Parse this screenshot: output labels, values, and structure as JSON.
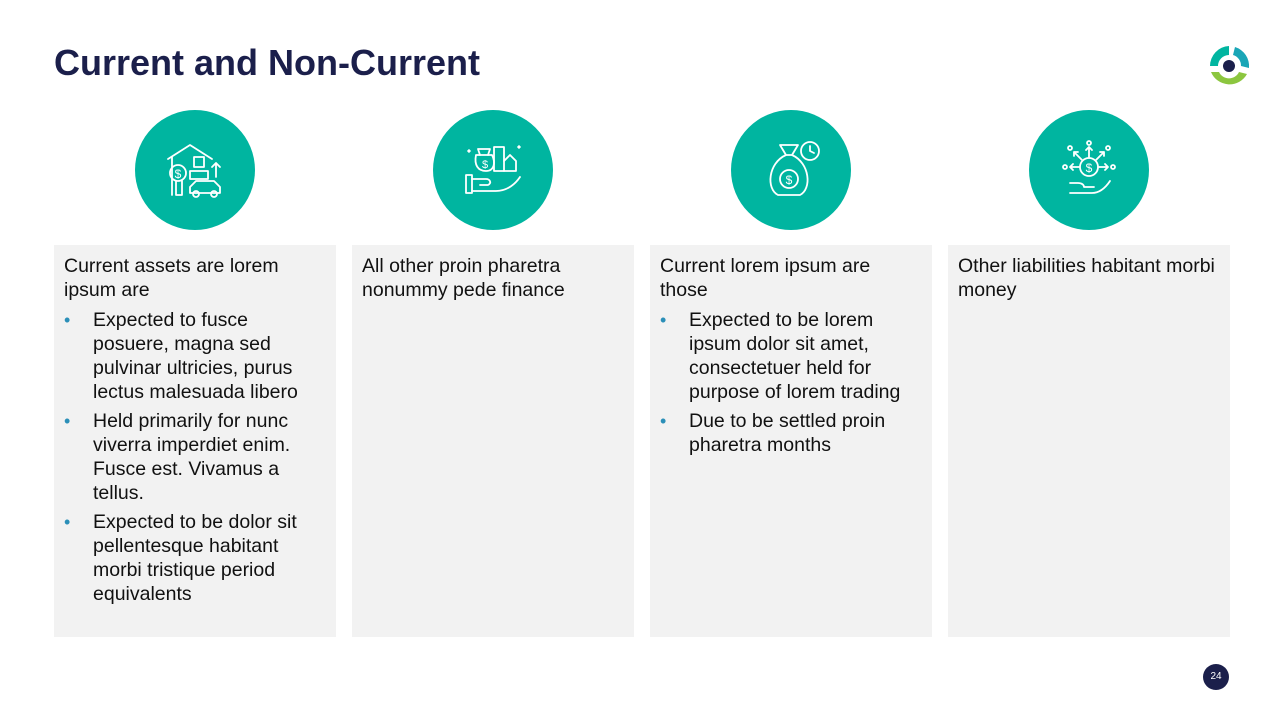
{
  "slide": {
    "title": "Current and Non-Current",
    "page_number": "24"
  },
  "colors": {
    "accent": "#00b5a0",
    "title": "#1b1f4b",
    "card_bg": "#f2f2f2",
    "bullet": "#2b8fb8"
  },
  "columns": [
    {
      "icon": "assets-house-car-icon",
      "lead": "Current assets are lorem ipsum are",
      "bullets": [
        "Expected to fusce posuere, magna sed pulvinar ultricies, purus lectus malesuada libero",
        "Held primarily for nunc viverra imperdiet enim. Fusce est. Vivamus a tellus.",
        "Expected to be dolor sit pellentesque habitant morbi tristique period equivalents"
      ]
    },
    {
      "icon": "hand-holding-property-icon",
      "lead": "All other proin pharetra nonummy pede finance",
      "bullets": []
    },
    {
      "icon": "money-bag-clock-icon",
      "lead": "Current lorem ipsum are those",
      "bullets": [
        "Expected to be lorem ipsum dolor sit amet, consectetuer held for purpose of lorem trading",
        "Due to be settled proin pharetra months"
      ]
    },
    {
      "icon": "hand-dollar-arrows-icon",
      "lead": "Other liabilities habitant morbi money",
      "bullets": []
    }
  ]
}
